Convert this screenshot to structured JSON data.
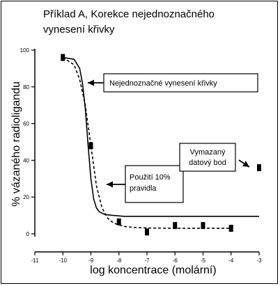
{
  "title_lines": [
    "Příklad A, Korekce nejednoznačného",
    "vynesení křivky"
  ],
  "chart_data": {
    "type": "scatter",
    "title": "Příklad A, Korekce nejednoznačného vynesení křivky",
    "xlabel": "log koncentrace (molární)",
    "ylabel": "% vázaného radioligandu",
    "xlim": [
      -11,
      -3
    ],
    "ylim": [
      0,
      100
    ],
    "x_ticks": [
      "-11",
      "-10",
      "-9",
      "-8",
      "-7",
      "-6",
      "-5",
      "-4",
      "-3"
    ],
    "y_ticks": [
      "0",
      "20",
      "40",
      "60",
      "80",
      "100"
    ],
    "series": [
      {
        "type": "scatter",
        "x": [
          -10,
          -9,
          -8,
          -7,
          -6,
          -5,
          -4,
          -3
        ],
        "y": [
          96,
          48,
          6.5,
          1,
          4.5,
          4.5,
          3,
          36
        ]
      },
      {
        "type": "line",
        "style": "solid",
        "x": [
          -10,
          -9.6,
          -9.4,
          -9.3,
          -9.2,
          -9.1,
          -9.0,
          -8.9,
          -8.8,
          -8.7,
          -8.5,
          -8.2,
          -7.8,
          -7.0,
          -6.0,
          -5.0,
          -4.0,
          -3.0
        ],
        "y": [
          96,
          95,
          90,
          82,
          68,
          48,
          30,
          19,
          14,
          12,
          10.5,
          10,
          9.5,
          9.5,
          9.5,
          9.5,
          9.5,
          9.5
        ]
      },
      {
        "type": "line",
        "style": "dashed",
        "x": [
          -10,
          -9.6,
          -9.4,
          -9.2,
          -9.0,
          -8.8,
          -8.6,
          -8.4,
          -8.2,
          -8.0,
          -7.8,
          -7.5,
          -7.0,
          -6.0,
          -5.0,
          -4.0
        ],
        "y": [
          96,
          92,
          84,
          70,
          48,
          26,
          14,
          8.5,
          6,
          4.8,
          4,
          3.5,
          3.2,
          3,
          3,
          3
        ]
      }
    ],
    "annotations": [
      {
        "text_lines": [
          "Nejednoznačné vynesení křivky"
        ]
      },
      {
        "text_lines": [
          "Použití 10%",
          "pravidla"
        ]
      },
      {
        "text_lines": [
          "Vymazaný",
          "datový bod"
        ]
      }
    ]
  },
  "colors": {
    "axis": "#000000",
    "marker": "#000000",
    "curve": "#000000"
  }
}
